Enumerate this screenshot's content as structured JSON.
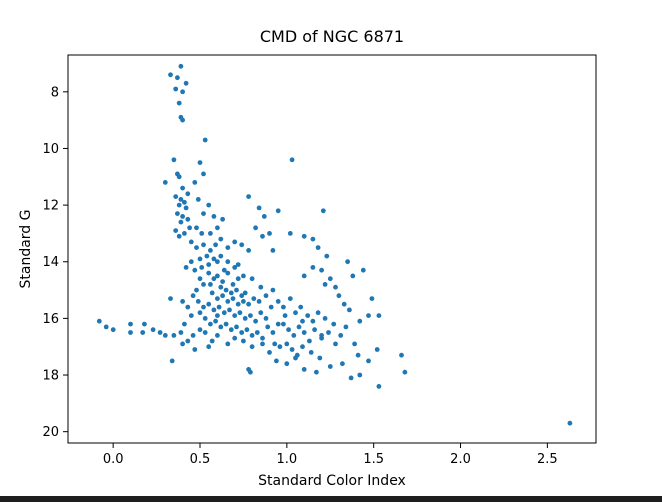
{
  "chart_data": {
    "type": "scatter",
    "title": "CMD of NGC 6871",
    "xlabel": "Standard Color Index",
    "ylabel": "Standard G",
    "xlim": [
      -0.26,
      2.78
    ],
    "ylim": [
      20.4,
      6.7
    ],
    "y_inverted": true,
    "grid": false,
    "legend": "none",
    "marker_color": "#1f77b4",
    "xticks": [
      0.0,
      0.5,
      1.0,
      1.5,
      2.0,
      2.5
    ],
    "xtick_labels": [
      "0.0",
      "0.5",
      "1.0",
      "1.5",
      "2.0",
      "2.5"
    ],
    "yticks": [
      8,
      10,
      12,
      14,
      16,
      18,
      20
    ],
    "ytick_labels": [
      "8",
      "10",
      "12",
      "14",
      "16",
      "18",
      "20"
    ],
    "points": [
      [
        0.39,
        7.1
      ],
      [
        0.33,
        7.4
      ],
      [
        0.37,
        7.5
      ],
      [
        0.42,
        7.7
      ],
      [
        0.36,
        7.9
      ],
      [
        0.4,
        8.0
      ],
      [
        0.38,
        8.4
      ],
      [
        0.39,
        8.9
      ],
      [
        0.4,
        9.0
      ],
      [
        0.53,
        9.7
      ],
      [
        1.03,
        10.4
      ],
      [
        0.35,
        10.4
      ],
      [
        0.3,
        11.2
      ],
      [
        0.5,
        10.5
      ],
      [
        0.52,
        10.9
      ],
      [
        0.37,
        10.9
      ],
      [
        0.38,
        11.0
      ],
      [
        0.4,
        11.4
      ],
      [
        0.43,
        11.6
      ],
      [
        0.36,
        11.7
      ],
      [
        0.39,
        11.8
      ],
      [
        0.41,
        11.9
      ],
      [
        0.38,
        12.0
      ],
      [
        0.42,
        12.1
      ],
      [
        0.37,
        12.3
      ],
      [
        0.4,
        12.4
      ],
      [
        0.39,
        12.6
      ],
      [
        0.43,
        12.5
      ],
      [
        0.36,
        12.9
      ],
      [
        0.41,
        13.0
      ],
      [
        0.44,
        12.8
      ],
      [
        0.38,
        13.1
      ],
      [
        0.47,
        11.2
      ],
      [
        0.49,
        11.8
      ],
      [
        0.52,
        12.3
      ],
      [
        0.55,
        12.0
      ],
      [
        0.58,
        12.4
      ],
      [
        0.48,
        12.8
      ],
      [
        0.51,
        13.0
      ],
      [
        0.56,
        13.0
      ],
      [
        0.6,
        12.8
      ],
      [
        0.63,
        12.5
      ],
      [
        0.45,
        13.3
      ],
      [
        0.48,
        13.5
      ],
      [
        0.52,
        13.4
      ],
      [
        0.56,
        13.6
      ],
      [
        0.59,
        13.4
      ],
      [
        0.62,
        13.2
      ],
      [
        0.66,
        13.5
      ],
      [
        0.7,
        13.3
      ],
      [
        0.5,
        13.9
      ],
      [
        0.54,
        13.8
      ],
      [
        0.58,
        13.9
      ],
      [
        0.62,
        13.8
      ],
      [
        0.45,
        14.0
      ],
      [
        0.42,
        14.2
      ],
      [
        0.47,
        14.3
      ],
      [
        0.51,
        14.2
      ],
      [
        0.55,
        14.1
      ],
      [
        0.6,
        14.0
      ],
      [
        0.78,
        11.7
      ],
      [
        0.84,
        12.1
      ],
      [
        0.87,
        12.4
      ],
      [
        0.95,
        12.2
      ],
      [
        1.21,
        12.2
      ],
      [
        0.82,
        12.8
      ],
      [
        0.86,
        13.1
      ],
      [
        0.9,
        13.0
      ],
      [
        1.02,
        13.0
      ],
      [
        1.1,
        13.1
      ],
      [
        1.15,
        13.2
      ],
      [
        0.74,
        13.4
      ],
      [
        0.78,
        13.6
      ],
      [
        0.92,
        13.6
      ],
      [
        1.18,
        13.5
      ],
      [
        1.23,
        13.8
      ],
      [
        0.55,
        14.4
      ],
      [
        0.58,
        14.6
      ],
      [
        0.6,
        14.5
      ],
      [
        0.63,
        14.7
      ],
      [
        0.66,
        14.4
      ],
      [
        0.69,
        14.8
      ],
      [
        0.72,
        14.6
      ],
      [
        0.75,
        14.5
      ],
      [
        0.62,
        14.9
      ],
      [
        0.65,
        15.0
      ],
      [
        0.68,
        15.1
      ],
      [
        0.71,
        15.0
      ],
      [
        0.74,
        15.2
      ],
      [
        0.57,
        15.1
      ],
      [
        0.6,
        15.3
      ],
      [
        0.63,
        15.2
      ],
      [
        0.66,
        15.4
      ],
      [
        0.69,
        15.3
      ],
      [
        0.72,
        15.5
      ],
      [
        0.75,
        15.4
      ],
      [
        0.78,
        15.5
      ],
      [
        0.81,
        15.3
      ],
      [
        0.55,
        15.5
      ],
      [
        0.58,
        15.7
      ],
      [
        0.61,
        15.6
      ],
      [
        0.64,
        15.8
      ],
      [
        0.67,
        15.7
      ],
      [
        0.7,
        15.9
      ],
      [
        0.73,
        15.8
      ],
      [
        0.76,
        16.0
      ],
      [
        0.79,
        15.9
      ],
      [
        0.82,
        16.1
      ],
      [
        0.85,
        15.8
      ],
      [
        0.88,
        16.0
      ],
      [
        0.5,
        15.8
      ],
      [
        0.53,
        16.0
      ],
      [
        0.56,
        16.2
      ],
      [
        0.59,
        16.1
      ],
      [
        0.62,
        16.3
      ],
      [
        0.65,
        16.2
      ],
      [
        0.68,
        16.4
      ],
      [
        0.71,
        16.3
      ],
      [
        0.74,
        16.5
      ],
      [
        0.77,
        16.4
      ],
      [
        0.8,
        16.6
      ],
      [
        0.83,
        16.5
      ],
      [
        0.86,
        16.7
      ],
      [
        0.89,
        16.3
      ],
      [
        0.92,
        16.5
      ],
      [
        0.95,
        16.2
      ],
      [
        0.8,
        14.6
      ],
      [
        0.85,
        14.9
      ],
      [
        0.88,
        15.2
      ],
      [
        0.92,
        15.0
      ],
      [
        0.95,
        15.4
      ],
      [
        0.98,
        15.6
      ],
      [
        1.02,
        15.3
      ],
      [
        1.05,
        15.8
      ],
      [
        1.08,
        15.6
      ],
      [
        1.12,
        15.9
      ],
      [
        1.15,
        16.1
      ],
      [
        1.18,
        15.8
      ],
      [
        1.22,
        16.0
      ],
      [
        0.98,
        16.2
      ],
      [
        1.01,
        16.4
      ],
      [
        1.04,
        16.6
      ],
      [
        1.07,
        16.3
      ],
      [
        1.1,
        16.5
      ],
      [
        1.13,
        16.8
      ],
      [
        1.16,
        16.4
      ],
      [
        1.2,
        16.7
      ],
      [
        1.24,
        16.5
      ],
      [
        1.28,
        16.9
      ],
      [
        1.31,
        16.6
      ],
      [
        1.34,
        16.3
      ],
      [
        1.0,
        16.9
      ],
      [
        1.03,
        17.1
      ],
      [
        1.06,
        17.3
      ],
      [
        1.09,
        17.0
      ],
      [
        1.14,
        17.2
      ],
      [
        1.19,
        17.4
      ],
      [
        0.93,
        16.9
      ],
      [
        0.96,
        17.0
      ],
      [
        0.86,
        16.9
      ],
      [
        0.9,
        17.2
      ],
      [
        0.8,
        17.0
      ],
      [
        0.75,
        16.8
      ],
      [
        0.7,
        16.7
      ],
      [
        0.66,
        16.9
      ],
      [
        0.6,
        16.6
      ],
      [
        0.57,
        16.8
      ],
      [
        0.53,
        16.5
      ],
      [
        0.5,
        16.4
      ],
      [
        0.46,
        16.6
      ],
      [
        0.43,
        16.8
      ],
      [
        0.4,
        16.9
      ],
      [
        0.47,
        17.1
      ],
      [
        0.55,
        17.0
      ],
      [
        0.43,
        15.6
      ],
      [
        0.45,
        15.9
      ],
      [
        0.41,
        16.2
      ],
      [
        0.39,
        16.5
      ],
      [
        0.35,
        16.6
      ],
      [
        0.33,
        15.3
      ],
      [
        0.4,
        15.4
      ],
      [
        0.46,
        15.2
      ],
      [
        0.48,
        15.0
      ],
      [
        0.52,
        14.8
      ],
      [
        0.5,
        14.6
      ],
      [
        0.94,
        17.5
      ],
      [
        1.0,
        17.6
      ],
      [
        1.05,
        17.4
      ],
      [
        0.78,
        17.8
      ],
      [
        0.79,
        17.9
      ],
      [
        1.1,
        17.8
      ],
      [
        1.17,
        17.9
      ],
      [
        1.25,
        17.7
      ],
      [
        1.32,
        17.6
      ],
      [
        1.37,
        18.1
      ],
      [
        1.42,
        18.0
      ],
      [
        1.47,
        17.5
      ],
      [
        1.41,
        17.3
      ],
      [
        1.53,
        18.4
      ],
      [
        1.68,
        17.9
      ],
      [
        1.66,
        17.3
      ],
      [
        1.52,
        17.1
      ],
      [
        1.39,
        16.9
      ],
      [
        1.3,
        15.2
      ],
      [
        1.33,
        15.5
      ],
      [
        1.38,
        14.5
      ],
      [
        1.44,
        14.3
      ],
      [
        1.49,
        15.3
      ],
      [
        1.53,
        15.9
      ],
      [
        1.47,
        15.9
      ],
      [
        1.42,
        16.1
      ],
      [
        1.36,
        15.7
      ],
      [
        1.28,
        14.9
      ],
      [
        1.25,
        14.6
      ],
      [
        1.2,
        14.3
      ],
      [
        1.15,
        14.2
      ],
      [
        1.1,
        14.5
      ],
      [
        1.22,
        14.8
      ],
      [
        1.35,
        14.0
      ],
      [
        1.27,
        16.2
      ],
      [
        1.2,
        16.6
      ],
      [
        1.09,
        16.1
      ],
      [
        0.99,
        15.9
      ],
      [
        0.91,
        15.6
      ],
      [
        0.84,
        15.4
      ],
      [
        0.76,
        15.1
      ],
      [
        0.7,
        14.2
      ],
      [
        0.66,
        14.0
      ],
      [
        0.72,
        14.1
      ],
      [
        0.64,
        14.3
      ],
      [
        0.56,
        14.8
      ],
      [
        0.49,
        15.4
      ],
      [
        0.52,
        15.6
      ],
      [
        0.6,
        15.9
      ],
      [
        0.23,
        16.4
      ],
      [
        0.17,
        16.5
      ],
      [
        0.1,
        16.5
      ],
      [
        0.1,
        16.2
      ],
      [
        0.18,
        16.2
      ],
      [
        0.27,
        16.5
      ],
      [
        0.3,
        16.6
      ],
      [
        -0.08,
        16.1
      ],
      [
        -0.04,
        16.3
      ],
      [
        0.0,
        16.4
      ],
      [
        0.34,
        17.5
      ],
      [
        2.63,
        19.7
      ]
    ]
  }
}
